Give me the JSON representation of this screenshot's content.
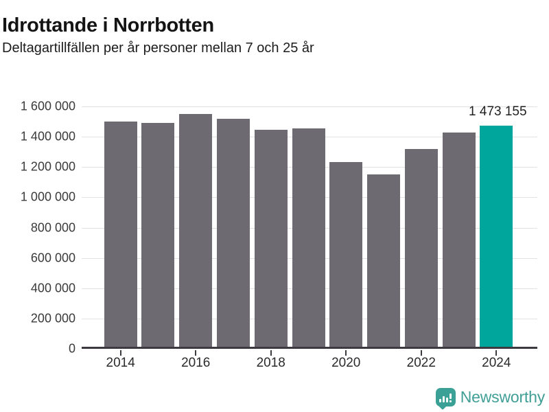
{
  "header": {
    "title": "Idrottande i Norrbotten",
    "subtitle": "Deltagartillfällen per år personer mellan 7 och 25 år"
  },
  "chart_data": {
    "type": "bar",
    "title": "Idrottande i Norrbotten",
    "subtitle": "Deltagartillfällen per år personer mellan 7 och 25 år",
    "categories": [
      "2014",
      "2015",
      "2016",
      "2017",
      "2018",
      "2019",
      "2020",
      "2021",
      "2022",
      "2023",
      "2024"
    ],
    "values": [
      1500000,
      1490000,
      1549000,
      1517000,
      1444000,
      1453000,
      1231000,
      1150000,
      1321000,
      1427000,
      1473155
    ],
    "ylim": [
      0,
      1600000
    ],
    "yticks": [
      {
        "value": 0,
        "label": "0"
      },
      {
        "value": 200000,
        "label": "200 000"
      },
      {
        "value": 400000,
        "label": "400 000"
      },
      {
        "value": 600000,
        "label": "600 000"
      },
      {
        "value": 800000,
        "label": "800 000"
      },
      {
        "value": 1000000,
        "label": "1 000 000"
      },
      {
        "value": 1200000,
        "label": "1 200 000"
      },
      {
        "value": 1400000,
        "label": "1 400 000"
      },
      {
        "value": 1600000,
        "label": "1 600 000"
      }
    ],
    "xticks": [
      {
        "index": 0,
        "label": "2014"
      },
      {
        "index": 2,
        "label": "2016"
      },
      {
        "index": 4,
        "label": "2018"
      },
      {
        "index": 6,
        "label": "2020"
      },
      {
        "index": 8,
        "label": "2022"
      },
      {
        "index": 10,
        "label": "2024"
      }
    ],
    "highlight_index": 10,
    "highlight_label": "1 473 155",
    "bar_color": "#6d6b71",
    "highlight_color": "#00a69c",
    "grid": true,
    "legend": "none"
  },
  "footer": {
    "brand": "Newsworthy",
    "logo_color": "#3ba095",
    "brand_text_color": "#3f9e95"
  }
}
